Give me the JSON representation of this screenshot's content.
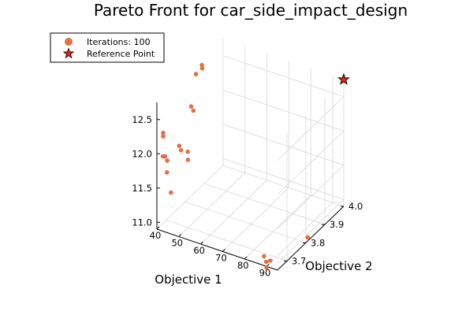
{
  "chart_data": {
    "type": "scatter",
    "projection": "3d",
    "title": "Pareto Front for car_side_impact_design",
    "xlabel": "Objective 1",
    "ylabel": "Objective 2",
    "zlabel": "",
    "xlim": [
      40,
      95
    ],
    "ylim": [
      3.65,
      4.0
    ],
    "zlim": [
      10.9,
      12.75
    ],
    "x_ticks": [
      "40",
      "50",
      "60",
      "70",
      "80",
      "90"
    ],
    "y_ticks": [
      "3.7",
      "3.8",
      "3.9",
      "4.0"
    ],
    "z_ticks": [
      "11.0",
      "11.5",
      "12.0",
      "12.5"
    ],
    "grid": true,
    "legend_position": "top-left",
    "series": [
      {
        "name": "Iterations: 100",
        "marker": "circle",
        "color": "#e26f46",
        "points": [
          {
            "x": 42,
            "y": 3.66,
            "z": 12.3
          },
          {
            "x": 42,
            "y": 3.66,
            "z": 12.25
          },
          {
            "x": 41,
            "y": 3.67,
            "z": 11.92
          },
          {
            "x": 42,
            "y": 3.67,
            "z": 11.93
          },
          {
            "x": 43,
            "y": 3.67,
            "z": 11.88
          },
          {
            "x": 42,
            "y": 3.68,
            "z": 11.67
          },
          {
            "x": 43,
            "y": 3.69,
            "z": 11.36
          },
          {
            "x": 45,
            "y": 3.71,
            "z": 12.01
          },
          {
            "x": 45,
            "y": 3.72,
            "z": 11.92
          },
          {
            "x": 48,
            "y": 3.72,
            "z": 11.93
          },
          {
            "x": 49,
            "y": 3.71,
            "z": 11.85
          },
          {
            "x": 47,
            "y": 3.75,
            "z": 12.5
          },
          {
            "x": 48,
            "y": 3.75,
            "z": 12.45
          },
          {
            "x": 44,
            "y": 3.81,
            "z": 12.78
          },
          {
            "x": 45,
            "y": 3.83,
            "z": 12.87
          },
          {
            "x": 46,
            "y": 3.82,
            "z": 12.86
          },
          {
            "x": 95,
            "y": 3.81,
            "z": 10.95
          },
          {
            "x": 88,
            "y": 3.66,
            "z": 11.0
          },
          {
            "x": 89,
            "y": 3.66,
            "z": 10.93
          },
          {
            "x": 90,
            "y": 3.67,
            "z": 10.93
          },
          {
            "x": 90,
            "y": 3.65,
            "z": 10.88
          }
        ]
      },
      {
        "name": "Reference Point",
        "marker": "star",
        "color": "#e0201b",
        "points": [
          {
            "x": 95,
            "y": 4.0,
            "z": 12.75
          }
        ]
      }
    ]
  }
}
